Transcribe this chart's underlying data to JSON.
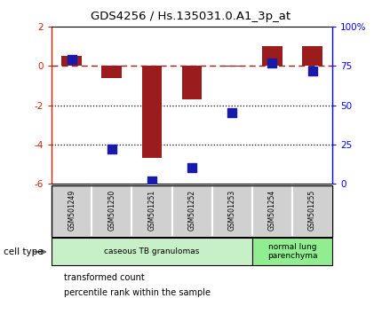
{
  "title": "GDS4256 / Hs.135031.0.A1_3p_at",
  "samples": [
    "GSM501249",
    "GSM501250",
    "GSM501251",
    "GSM501252",
    "GSM501253",
    "GSM501254",
    "GSM501255"
  ],
  "transformed_count": [
    0.5,
    -0.6,
    -4.7,
    -1.7,
    -0.05,
    1.0,
    1.0
  ],
  "percentile_rank": [
    79,
    22,
    2,
    10,
    45,
    77,
    72
  ],
  "bar_color": "#9b1c1c",
  "dot_color": "#1a1aaa",
  "ylim_left": [
    -6,
    2
  ],
  "ylim_right": [
    0,
    100
  ],
  "yticks_left": [
    -6,
    -4,
    -2,
    0,
    2
  ],
  "yticks_right": [
    0,
    25,
    50,
    75,
    100
  ],
  "yticklabels_right": [
    "0",
    "25",
    "50",
    "75",
    "100%"
  ],
  "hline_y": 0,
  "dotted_lines": [
    -2,
    -4
  ],
  "cell_type_groups": [
    {
      "label": "caseous TB granulomas",
      "samples": [
        0,
        1,
        2,
        3,
        4
      ],
      "color": "#c8f0c8"
    },
    {
      "label": "normal lung\nparenchyma",
      "samples": [
        5,
        6
      ],
      "color": "#90ee90"
    }
  ],
  "legend_items": [
    {
      "label": "transformed count",
      "color": "#bb2200"
    },
    {
      "label": "percentile rank within the sample",
      "color": "#1a1aaa"
    }
  ],
  "cell_type_label": "cell type",
  "background_color": "#ffffff",
  "bar_width": 0.5,
  "dot_size": 55,
  "sample_label_color": "#505050",
  "sample_box_color": "#d0d0d0"
}
